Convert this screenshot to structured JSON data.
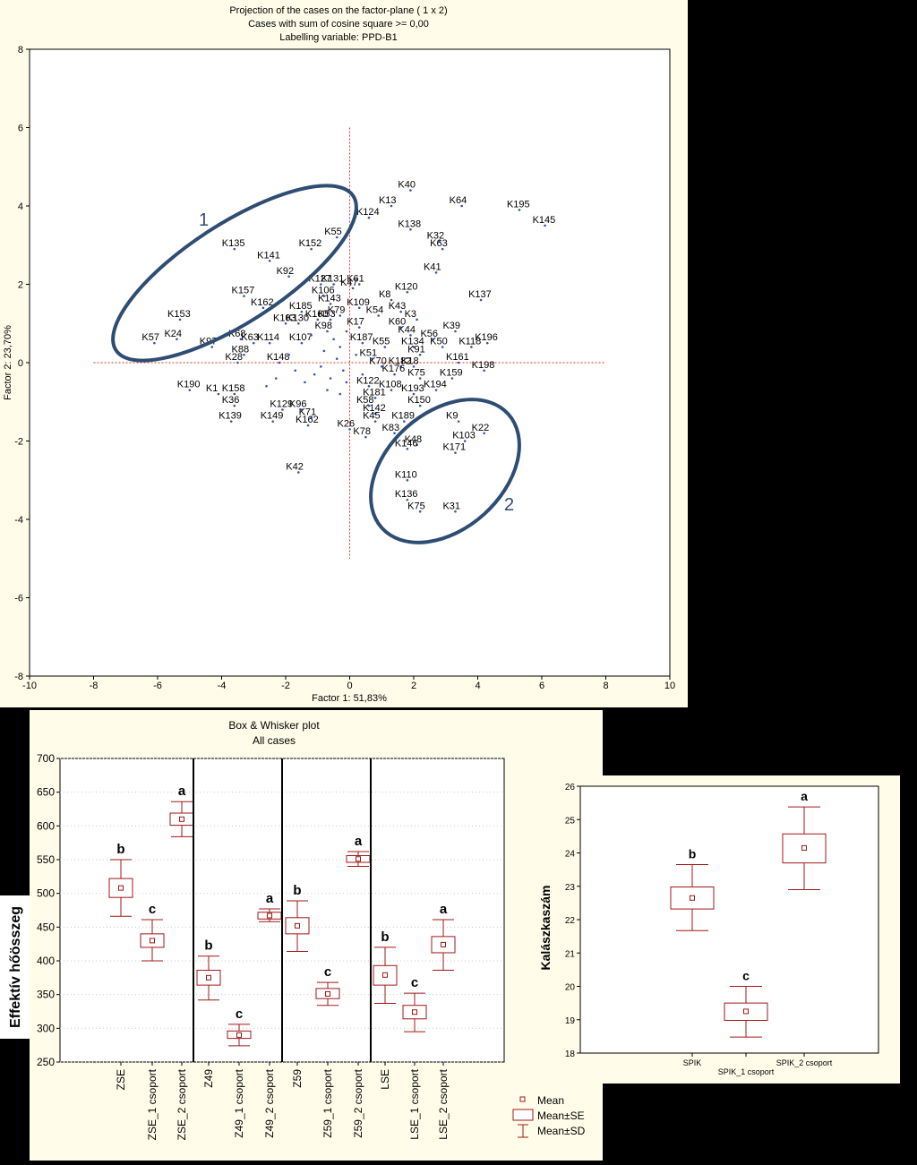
{
  "chart_data": [
    {
      "type": "scatter",
      "title_lines": [
        "Projection of the cases on the factor-plane  ( 1 x  2)",
        "Cases with sum of cosine square >= 0,00",
        "Labelling variable: PPD-B1"
      ],
      "xlabel": "Factor 1: 51,83%",
      "ylabel": "Factor 2: 23,70%",
      "xlim": [
        -10,
        10
      ],
      "ylim": [
        -8,
        8
      ],
      "xticks": [
        "-10",
        "-8",
        "-6",
        "-4",
        "-2",
        "0",
        "2",
        "4",
        "6",
        "8",
        "10"
      ],
      "yticks": [
        "8",
        "6",
        "4",
        "2",
        "0",
        "-2",
        "-4",
        "-6",
        "-8"
      ],
      "group_labels": [
        "1",
        "2"
      ],
      "points": [
        {
          "label": "K40",
          "x": 1.9,
          "y": 4.4
        },
        {
          "label": "K13",
          "x": 1.3,
          "y": 4.0
        },
        {
          "label": "K64",
          "x": 3.5,
          "y": 4.0
        },
        {
          "label": "K195",
          "x": 5.3,
          "y": 3.9
        },
        {
          "label": "K145",
          "x": 6.1,
          "y": 3.5
        },
        {
          "label": "K124",
          "x": 0.6,
          "y": 3.7
        },
        {
          "label": "K138",
          "x": 1.9,
          "y": 3.4
        },
        {
          "label": "K32",
          "x": 2.8,
          "y": 3.1
        },
        {
          "label": "K63",
          "x": 2.9,
          "y": 2.9
        },
        {
          "label": "K55",
          "x": -0.4,
          "y": 3.2
        },
        {
          "label": "K135",
          "x": -3.6,
          "y": 2.9
        },
        {
          "label": "K152",
          "x": -1.2,
          "y": 2.9
        },
        {
          "label": "K141",
          "x": -2.5,
          "y": 2.6
        },
        {
          "label": "K41",
          "x": 2.7,
          "y": 2.3
        },
        {
          "label": "K92",
          "x": -1.9,
          "y": 2.2
        },
        {
          "label": "K61",
          "x": 0.3,
          "y": 2.0
        },
        {
          "label": "K127",
          "x": -0.9,
          "y": 2.0
        },
        {
          "label": "K131",
          "x": -0.5,
          "y": 2.0
        },
        {
          "label": "K47",
          "x": 0.1,
          "y": 1.9
        },
        {
          "label": "K120",
          "x": 1.8,
          "y": 1.8
        },
        {
          "label": "K137",
          "x": 4.1,
          "y": 1.6
        },
        {
          "label": "K157",
          "x": -3.3,
          "y": 1.7
        },
        {
          "label": "K106",
          "x": -0.8,
          "y": 1.7
        },
        {
          "label": "K8",
          "x": 1.3,
          "y": 1.6
        },
        {
          "label": "K143",
          "x": -0.6,
          "y": 1.5
        },
        {
          "label": "K109",
          "x": 0.3,
          "y": 1.4
        },
        {
          "label": "K162",
          "x": -2.7,
          "y": 1.4
        },
        {
          "label": "K185",
          "x": -1.5,
          "y": 1.3
        },
        {
          "label": "K43",
          "x": 1.6,
          "y": 1.3
        },
        {
          "label": "K54",
          "x": 0.9,
          "y": 1.2
        },
        {
          "label": "K79",
          "x": -0.3,
          "y": 1.2
        },
        {
          "label": "K153",
          "x": -5.3,
          "y": 1.1
        },
        {
          "label": "K3",
          "x": 2.1,
          "y": 1.1
        },
        {
          "label": "K160",
          "x": -1.0,
          "y": 1.1
        },
        {
          "label": "K53",
          "x": -0.6,
          "y": 1.1
        },
        {
          "label": "K103",
          "x": -2.0,
          "y": 1.0
        },
        {
          "label": "K130",
          "x": -1.6,
          "y": 1.0
        },
        {
          "label": "K60",
          "x": 1.6,
          "y": 0.9
        },
        {
          "label": "K17",
          "x": 0.3,
          "y": 0.9
        },
        {
          "label": "K98",
          "x": -0.7,
          "y": 0.8
        },
        {
          "label": "K39",
          "x": 3.3,
          "y": 0.8
        },
        {
          "label": "K44",
          "x": 1.9,
          "y": 0.7
        },
        {
          "label": "K56",
          "x": 2.6,
          "y": 0.6
        },
        {
          "label": "K68",
          "x": -3.4,
          "y": 0.6
        },
        {
          "label": "K24",
          "x": -5.4,
          "y": 0.6
        },
        {
          "label": "K57",
          "x": -6.1,
          "y": 0.5
        },
        {
          "label": "K114",
          "x": -2.5,
          "y": 0.5
        },
        {
          "label": "K63",
          "x": -3.0,
          "y": 0.5
        },
        {
          "label": "K107",
          "x": -1.5,
          "y": 0.5
        },
        {
          "label": "K187",
          "x": 0.4,
          "y": 0.5
        },
        {
          "label": "K196",
          "x": 4.3,
          "y": 0.5
        },
        {
          "label": "K134",
          "x": 2.0,
          "y": 0.4
        },
        {
          "label": "K50",
          "x": 2.9,
          "y": 0.4
        },
        {
          "label": "K118",
          "x": 3.8,
          "y": 0.4
        },
        {
          "label": "K97",
          "x": -4.3,
          "y": 0.4
        },
        {
          "label": "K55",
          "x": 1.1,
          "y": 0.4
        },
        {
          "label": "K88",
          "x": -3.3,
          "y": 0.2
        },
        {
          "label": "K91",
          "x": 2.2,
          "y": 0.2
        },
        {
          "label": "K51",
          "x": 0.7,
          "y": 0.1
        },
        {
          "label": "K161",
          "x": 3.4,
          "y": 0.0
        },
        {
          "label": "K28",
          "x": -3.5,
          "y": 0.0
        },
        {
          "label": "K148",
          "x": -2.2,
          "y": 0.0
        },
        {
          "label": "K70",
          "x": 1.0,
          "y": -0.1
        },
        {
          "label": "K182",
          "x": 1.6,
          "y": -0.1
        },
        {
          "label": "K18",
          "x": 2.0,
          "y": -0.1
        },
        {
          "label": "K198",
          "x": 4.2,
          "y": -0.2
        },
        {
          "label": "K176",
          "x": 1.4,
          "y": -0.3
        },
        {
          "label": "K75",
          "x": 2.2,
          "y": -0.4
        },
        {
          "label": "K159",
          "x": 3.2,
          "y": -0.4
        },
        {
          "label": "K190",
          "x": -5.0,
          "y": -0.7
        },
        {
          "label": "K122",
          "x": 0.6,
          "y": -0.6
        },
        {
          "label": "K108",
          "x": 1.3,
          "y": -0.7
        },
        {
          "label": "K194",
          "x": 2.7,
          "y": -0.7
        },
        {
          "label": "K158",
          "x": -3.6,
          "y": -0.8
        },
        {
          "label": "K193",
          "x": 2.0,
          "y": -0.8
        },
        {
          "label": "K1",
          "x": -4.1,
          "y": -0.8
        },
        {
          "label": "K181",
          "x": 0.8,
          "y": -0.9
        },
        {
          "label": "K36",
          "x": -3.6,
          "y": -1.1
        },
        {
          "label": "K58",
          "x": 0.6,
          "y": -1.1
        },
        {
          "label": "K150",
          "x": 2.2,
          "y": -1.1
        },
        {
          "label": "K129",
          "x": -2.1,
          "y": -1.2
        },
        {
          "label": "K96",
          "x": -1.5,
          "y": -1.2
        },
        {
          "label": "K142",
          "x": 0.8,
          "y": -1.3
        },
        {
          "label": "K71",
          "x": -1.2,
          "y": -1.4
        },
        {
          "label": "K9",
          "x": 3.4,
          "y": -1.5
        },
        {
          "label": "K139",
          "x": -3.7,
          "y": -1.5
        },
        {
          "label": "K149",
          "x": -2.4,
          "y": -1.5
        },
        {
          "label": "K189",
          "x": 1.7,
          "y": -1.5
        },
        {
          "label": "K45",
          "x": 0.8,
          "y": -1.5
        },
        {
          "label": "K162",
          "x": -1.3,
          "y": -1.6
        },
        {
          "label": "K26",
          "x": 0.0,
          "y": -1.7
        },
        {
          "label": "K22",
          "x": 4.2,
          "y": -1.8
        },
        {
          "label": "K83",
          "x": 1.4,
          "y": -1.8
        },
        {
          "label": "K78",
          "x": 0.5,
          "y": -1.9
        },
        {
          "label": "K103",
          "x": 3.6,
          "y": -2.0
        },
        {
          "label": "K48",
          "x": 2.1,
          "y": -2.1
        },
        {
          "label": "K146",
          "x": 1.8,
          "y": -2.2
        },
        {
          "label": "K171",
          "x": 3.3,
          "y": -2.3
        },
        {
          "label": "K42",
          "x": -1.6,
          "y": -2.8
        },
        {
          "label": "K110",
          "x": 1.8,
          "y": -3.0
        },
        {
          "label": "K136",
          "x": 1.8,
          "y": -3.5
        },
        {
          "label": "K75",
          "x": 2.2,
          "y": -3.8
        },
        {
          "label": "K31",
          "x": 3.3,
          "y": -3.8
        },
        {
          "label": "",
          "x": -0.5,
          "y": 0.6
        },
        {
          "label": "",
          "x": -0.3,
          "y": 0.4
        },
        {
          "label": "",
          "x": -0.8,
          "y": 0.3
        },
        {
          "label": "",
          "x": -0.4,
          "y": 0.1
        },
        {
          "label": "",
          "x": -0.9,
          "y": -0.1
        },
        {
          "label": "",
          "x": -0.2,
          "y": -0.2
        },
        {
          "label": "",
          "x": -1.1,
          "y": -0.3
        },
        {
          "label": "",
          "x": -0.6,
          "y": -0.4
        },
        {
          "label": "",
          "x": -0.1,
          "y": -0.5
        },
        {
          "label": "",
          "x": -1.4,
          "y": -0.5
        },
        {
          "label": "",
          "x": -0.7,
          "y": -0.7
        },
        {
          "label": "",
          "x": -0.3,
          "y": -0.8
        },
        {
          "label": "",
          "x": 0.2,
          "y": 0.2
        },
        {
          "label": "",
          "x": 0.4,
          "y": -0.3
        },
        {
          "label": "",
          "x": -1.7,
          "y": -0.2
        },
        {
          "label": "",
          "x": -1.9,
          "y": 0.2
        },
        {
          "label": "",
          "x": -2.3,
          "y": -0.4
        },
        {
          "label": "",
          "x": -2.6,
          "y": -0.6
        },
        {
          "label": "",
          "x": -1.2,
          "y": 0.7
        },
        {
          "label": "",
          "x": -0.1,
          "y": 0.8
        }
      ]
    },
    {
      "type": "boxplot",
      "title_lines": [
        "Box & Whisker plot",
        "All cases"
      ],
      "ylabel": "Effektív hőösszeg",
      "ylim": [
        250,
        700
      ],
      "yticks": [
        "700",
        "650",
        "600",
        "550",
        "500",
        "450",
        "400",
        "350",
        "300",
        "250"
      ],
      "categories": [
        "ZSE",
        "ZSE_1 csoport",
        "ZSE_2 csoport",
        "Z49",
        "Z49_1 csoport",
        "Z49_2 csoport",
        "Z59",
        "Z59_1 csoport",
        "Z59_2 csoport",
        "LSE",
        "LSE_1 csoport",
        "LSE_2 csoport"
      ],
      "means": [
        508,
        430,
        610,
        375,
        290,
        467,
        452,
        351,
        551,
        379,
        324,
        424
      ],
      "se_low": [
        494,
        420,
        601,
        364,
        285,
        462,
        440,
        344,
        546,
        364,
        314,
        412
      ],
      "se_high": [
        522,
        440,
        619,
        386,
        296,
        472,
        464,
        359,
        556,
        393,
        334,
        436
      ],
      "sd_low": [
        466,
        400,
        584,
        342,
        274,
        458,
        414,
        334,
        540,
        337,
        295,
        386
      ],
      "sd_high": [
        550,
        461,
        636,
        407,
        306,
        477,
        489,
        368,
        562,
        420,
        352,
        461
      ],
      "letters": [
        "b",
        "c",
        "a",
        "b",
        "c",
        "a",
        "b",
        "c",
        "a",
        "b",
        "c",
        "a"
      ],
      "legend": [
        "Mean",
        "Mean±SE",
        "Mean±SD"
      ]
    },
    {
      "type": "boxplot",
      "ylabel": "Kalászkaszám",
      "ylim": [
        18,
        26
      ],
      "yticks": [
        "26",
        "25",
        "24",
        "23",
        "22",
        "21",
        "20",
        "19",
        "18"
      ],
      "categories": [
        "SPIK",
        "SPIK_1 csoport",
        "SPIK_2 csoport"
      ],
      "means": [
        22.65,
        19.25,
        24.15
      ],
      "se_low": [
        22.32,
        18.98,
        23.7
      ],
      "se_high": [
        22.98,
        19.5,
        24.57
      ],
      "sd_low": [
        21.67,
        18.48,
        22.9
      ],
      "sd_high": [
        23.65,
        20.0,
        25.38
      ],
      "letters": [
        "b",
        "c",
        "a"
      ]
    }
  ]
}
